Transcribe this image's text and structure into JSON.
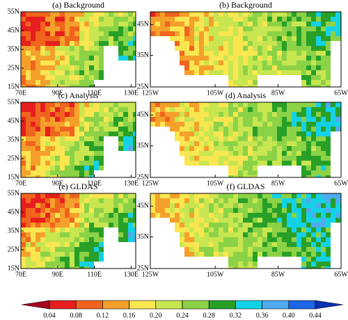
{
  "panels": [
    {
      "region": "asia",
      "title": "(a) Background",
      "xticks": [
        "70E",
        "90E",
        "110E",
        "130E"
      ],
      "yticks": [
        "55N",
        "45N",
        "35N",
        "25N",
        "15N"
      ]
    },
    {
      "region": "us",
      "title": "(b) Background",
      "xticks": [
        "125W",
        "105W",
        "85W",
        "65W"
      ],
      "yticks": [
        "45N",
        "35N",
        "25N"
      ]
    },
    {
      "region": "asia",
      "title": "(c) Analysis",
      "xticks": [
        "70E",
        "90E",
        "110E",
        "130E"
      ],
      "yticks": [
        "55N",
        "45N",
        "35N",
        "25N",
        "15N"
      ]
    },
    {
      "region": "us",
      "title": "(d) Analysis",
      "xticks": [
        "125W",
        "105W",
        "85W",
        "65W"
      ],
      "yticks": [
        "45N",
        "35N",
        "25N"
      ]
    },
    {
      "region": "asia",
      "title": "(e) GLDAS",
      "xticks": [
        "70E",
        "90E",
        "110E",
        "130E"
      ],
      "yticks": [
        "55N",
        "45N",
        "35N",
        "25N",
        "15N"
      ]
    },
    {
      "region": "us",
      "title": "(f) GLDAS",
      "xticks": [
        "125W",
        "105W",
        "85W",
        "65W"
      ],
      "yticks": [
        "45N",
        "35N",
        "25N"
      ]
    }
  ],
  "colorbar": {
    "lim": [
      0.04,
      0.44
    ],
    "ticks": [
      0.04,
      0.08,
      0.12,
      0.16,
      {
        "value": 0.2,
        "label": "0.20"
      },
      0.24,
      0.28,
      0.32,
      0.36,
      {
        "value": 0.4,
        "label": "0.40"
      },
      0.44
    ],
    "colors": [
      "#a50021",
      "#e61e1e",
      "#f0641e",
      "#f5a02a",
      "#fae650",
      "#c8e650",
      "#8cd246",
      "#28a028",
      "#14d2e6",
      "#50aaf0",
      "#1e64e6",
      "#0a32b4"
    ]
  }
}
